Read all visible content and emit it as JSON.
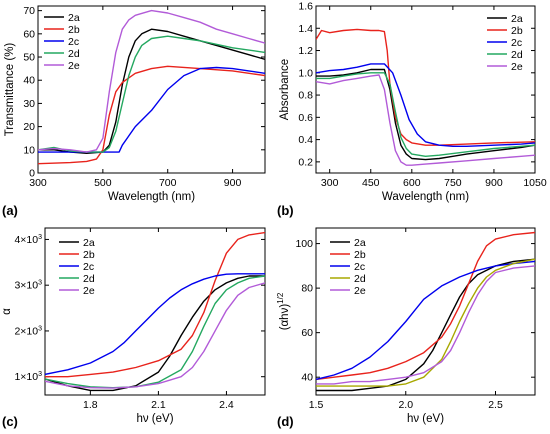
{
  "panel_labels": [
    "(a)",
    "(b)",
    "(c)",
    "(d)"
  ],
  "chart_data": [
    {
      "id": "a",
      "type": "line",
      "xlabel": "Wavelength (nm)",
      "ylabel": "Transmittance (%)",
      "xlim": [
        300,
        1000
      ],
      "ylim": [
        0,
        72
      ],
      "xticks": [
        300,
        500,
        700,
        900
      ],
      "xtick_labels": [
        "300",
        "500",
        "700",
        "900"
      ],
      "yticks": [
        0,
        10,
        20,
        30,
        40,
        50,
        60,
        70
      ],
      "ytick_labels": [
        "0",
        "10",
        "20",
        "30",
        "40",
        "50",
        "60",
        "70"
      ],
      "legend_position": "top-left",
      "grid": false,
      "series": [
        {
          "name": "2a",
          "color": "#000000",
          "x": [
            300,
            350,
            400,
            450,
            500,
            520,
            540,
            560,
            580,
            600,
            620,
            650,
            700,
            750,
            800,
            850,
            900,
            950,
            1000
          ],
          "y": [
            10,
            10,
            9,
            8.5,
            9,
            12,
            22,
            38,
            50,
            57,
            60,
            62,
            61,
            59,
            57,
            55,
            53,
            51,
            49
          ]
        },
        {
          "name": "2b",
          "color": "#e8231c",
          "x": [
            300,
            400,
            450,
            480,
            500,
            520,
            540,
            560,
            600,
            650,
            700,
            800,
            900,
            1000
          ],
          "y": [
            4,
            4.5,
            5,
            6,
            10,
            25,
            35,
            39,
            43,
            45,
            46,
            45,
            44,
            42
          ]
        },
        {
          "name": "2c",
          "color": "#0000ee",
          "x": [
            300,
            400,
            500,
            550,
            560,
            580,
            600,
            650,
            700,
            750,
            800,
            850,
            900,
            950,
            1000
          ],
          "y": [
            9,
            9,
            9,
            9,
            12,
            16,
            20,
            27,
            36,
            42,
            45,
            45.5,
            45,
            44,
            43
          ]
        },
        {
          "name": "2d",
          "color": "#24a860",
          "x": [
            300,
            350,
            400,
            450,
            500,
            520,
            540,
            560,
            580,
            600,
            620,
            650,
            700,
            750,
            800,
            900,
            1000
          ],
          "y": [
            10,
            11,
            9.5,
            9,
            9,
            11,
            18,
            30,
            42,
            50,
            55,
            58,
            59,
            58,
            57,
            54,
            52
          ]
        },
        {
          "name": "2e",
          "color": "#b25bd8",
          "x": [
            300,
            350,
            400,
            450,
            480,
            500,
            520,
            540,
            560,
            580,
            600,
            650,
            700,
            750,
            800,
            850,
            900,
            950,
            1000
          ],
          "y": [
            10,
            10.5,
            10,
            9,
            10,
            15,
            35,
            52,
            62,
            66,
            68,
            70,
            69,
            67,
            65,
            62,
            60,
            58,
            56
          ]
        }
      ]
    },
    {
      "id": "b",
      "type": "line",
      "xlabel": "Wavelength (nm)",
      "ylabel": "Absorbance",
      "xlim": [
        250,
        1050
      ],
      "ylim": [
        0.1,
        1.6
      ],
      "xticks": [
        300,
        450,
        600,
        750,
        900,
        1050
      ],
      "xtick_labels": [
        "300",
        "450",
        "600",
        "750",
        "900",
        "1050"
      ],
      "yticks": [
        0.2,
        0.4,
        0.6,
        0.8,
        1.0,
        1.2,
        1.4,
        1.6
      ],
      "ytick_labels": [
        "0.2",
        "0.4",
        "0.6",
        "0.8",
        "1.0",
        "1.2",
        "1.4",
        "1.6"
      ],
      "legend_position": "top-right",
      "grid": false,
      "series": [
        {
          "name": "2a",
          "color": "#000000",
          "x": [
            250,
            300,
            350,
            400,
            450,
            500,
            520,
            540,
            560,
            580,
            600,
            650,
            700,
            750,
            800,
            900,
            1000,
            1050
          ],
          "y": [
            0.97,
            0.97,
            0.98,
            1.0,
            1.03,
            1.03,
            0.85,
            0.55,
            0.35,
            0.27,
            0.23,
            0.22,
            0.23,
            0.25,
            0.27,
            0.3,
            0.33,
            0.35
          ]
        },
        {
          "name": "2b",
          "color": "#e8231c",
          "x": [
            250,
            270,
            300,
            350,
            400,
            450,
            480,
            500,
            510,
            520,
            540,
            560,
            580,
            600,
            650,
            700,
            800,
            900,
            1050
          ],
          "y": [
            1.3,
            1.38,
            1.36,
            1.38,
            1.39,
            1.38,
            1.38,
            1.37,
            1.2,
            0.9,
            0.6,
            0.45,
            0.4,
            0.37,
            0.35,
            0.35,
            0.36,
            0.37,
            0.38
          ]
        },
        {
          "name": "2c",
          "color": "#0000ee",
          "x": [
            250,
            300,
            350,
            400,
            450,
            500,
            530,
            560,
            590,
            620,
            650,
            700,
            750,
            800,
            900,
            1000,
            1050
          ],
          "y": [
            1.0,
            1.02,
            1.03,
            1.05,
            1.08,
            1.08,
            1.0,
            0.8,
            0.58,
            0.45,
            0.38,
            0.35,
            0.34,
            0.34,
            0.35,
            0.36,
            0.37
          ]
        },
        {
          "name": "2d",
          "color": "#24a860",
          "x": [
            250,
            300,
            350,
            400,
            450,
            500,
            520,
            540,
            560,
            580,
            600,
            650,
            700,
            800,
            900,
            1000,
            1050
          ],
          "y": [
            0.95,
            0.95,
            0.97,
            0.99,
            1.0,
            1.0,
            0.9,
            0.65,
            0.42,
            0.32,
            0.27,
            0.25,
            0.26,
            0.29,
            0.32,
            0.34,
            0.35
          ]
        },
        {
          "name": "2e",
          "color": "#b25bd8",
          "x": [
            250,
            300,
            350,
            400,
            450,
            480,
            500,
            520,
            540,
            560,
            580,
            600,
            650,
            700,
            800,
            900,
            1000,
            1050
          ],
          "y": [
            0.92,
            0.9,
            0.93,
            0.95,
            0.97,
            0.98,
            0.85,
            0.55,
            0.3,
            0.2,
            0.17,
            0.17,
            0.18,
            0.19,
            0.21,
            0.23,
            0.25,
            0.26
          ]
        }
      ]
    },
    {
      "id": "c",
      "type": "line",
      "xlabel": "hν (eV)",
      "ylabel": "α",
      "ylabel_style": "plain",
      "xlim": [
        1.6,
        2.57
      ],
      "ylim": [
        600,
        4250
      ],
      "xticks": [
        1.8,
        2.1,
        2.4
      ],
      "xtick_labels": [
        "1.8",
        "2.1",
        "2.4"
      ],
      "yticks": [
        1000,
        2000,
        3000,
        4000
      ],
      "ytick_labels": [
        "1×10³",
        "2×10³",
        "3×10³",
        "4×10³"
      ],
      "legend_position": "top-left",
      "grid": false,
      "series": [
        {
          "name": "2a",
          "color": "#000000",
          "x": [
            1.6,
            1.7,
            1.8,
            1.9,
            2.0,
            2.1,
            2.15,
            2.2,
            2.25,
            2.3,
            2.35,
            2.4,
            2.45,
            2.5,
            2.57
          ],
          "y": [
            950,
            800,
            700,
            700,
            800,
            1100,
            1450,
            1900,
            2300,
            2650,
            2900,
            3050,
            3150,
            3200,
            3200
          ]
        },
        {
          "name": "2b",
          "color": "#e8231c",
          "x": [
            1.6,
            1.7,
            1.8,
            1.9,
            2.0,
            2.1,
            2.2,
            2.25,
            2.3,
            2.35,
            2.4,
            2.45,
            2.5,
            2.57
          ],
          "y": [
            1000,
            1000,
            1050,
            1100,
            1200,
            1350,
            1600,
            1900,
            2400,
            3100,
            3700,
            4000,
            4100,
            4150
          ]
        },
        {
          "name": "2c",
          "color": "#0000ee",
          "x": [
            1.6,
            1.65,
            1.7,
            1.8,
            1.9,
            1.95,
            2.0,
            2.05,
            2.1,
            2.15,
            2.2,
            2.25,
            2.3,
            2.35,
            2.4,
            2.45,
            2.5,
            2.57
          ],
          "y": [
            1050,
            1100,
            1150,
            1300,
            1550,
            1750,
            2000,
            2250,
            2500,
            2720,
            2900,
            3030,
            3130,
            3200,
            3240,
            3250,
            3250,
            3250
          ]
        },
        {
          "name": "2d",
          "color": "#24a860",
          "x": [
            1.6,
            1.7,
            1.8,
            1.9,
            2.0,
            2.1,
            2.2,
            2.25,
            2.3,
            2.35,
            2.4,
            2.45,
            2.5,
            2.57
          ],
          "y": [
            950,
            850,
            780,
            760,
            780,
            880,
            1150,
            1550,
            2100,
            2600,
            2900,
            3050,
            3150,
            3200
          ]
        },
        {
          "name": "2e",
          "color": "#b25bd8",
          "x": [
            1.6,
            1.7,
            1.8,
            1.9,
            2.0,
            2.1,
            2.2,
            2.25,
            2.3,
            2.35,
            2.4,
            2.45,
            2.5,
            2.57
          ],
          "y": [
            900,
            800,
            760,
            750,
            780,
            850,
            1000,
            1200,
            1550,
            2000,
            2450,
            2780,
            2950,
            3050
          ]
        }
      ]
    },
    {
      "id": "d",
      "type": "line",
      "xlabel": "hν (eV)",
      "ylabel": "(αhν)",
      "ylabel_superscript": "1/2",
      "xlim": [
        1.5,
        2.72
      ],
      "ylim": [
        32,
        107
      ],
      "xticks": [
        1.5,
        2.0,
        2.5
      ],
      "xtick_labels": [
        "1.5",
        "2.0",
        "2.5"
      ],
      "yticks": [
        40,
        60,
        80,
        100
      ],
      "ytick_labels": [
        "40",
        "60",
        "80",
        "100"
      ],
      "legend_position": "top-left",
      "grid": false,
      "series": [
        {
          "name": "2a",
          "color": "#000000",
          "x": [
            1.5,
            1.6,
            1.7,
            1.8,
            1.9,
            2.0,
            2.1,
            2.15,
            2.2,
            2.25,
            2.3,
            2.35,
            2.4,
            2.5,
            2.6,
            2.72
          ],
          "y": [
            34,
            34,
            34,
            35,
            36,
            39,
            46,
            52,
            60,
            68,
            76,
            82,
            86,
            90,
            92,
            93
          ]
        },
        {
          "name": "2b",
          "color": "#e8231c",
          "x": [
            1.5,
            1.6,
            1.7,
            1.8,
            1.9,
            2.0,
            2.1,
            2.2,
            2.25,
            2.3,
            2.35,
            2.4,
            2.45,
            2.5,
            2.6,
            2.72
          ],
          "y": [
            39,
            40,
            41,
            42,
            44,
            47,
            51,
            58,
            64,
            72,
            82,
            92,
            99,
            102,
            104,
            105
          ]
        },
        {
          "name": "2c",
          "color": "#0000ee",
          "x": [
            1.5,
            1.6,
            1.7,
            1.8,
            1.9,
            2.0,
            2.05,
            2.1,
            2.2,
            2.3,
            2.4,
            2.5,
            2.6,
            2.72
          ],
          "y": [
            39,
            41,
            44,
            49,
            56,
            65,
            70,
            75,
            81,
            85,
            88,
            90,
            91,
            92
          ]
        },
        {
          "name": "2d",
          "color": "#a8a800",
          "x": [
            1.5,
            1.6,
            1.7,
            1.8,
            1.9,
            2.0,
            2.1,
            2.2,
            2.25,
            2.3,
            2.35,
            2.4,
            2.45,
            2.5,
            2.6,
            2.72
          ],
          "y": [
            36,
            36,
            36,
            36,
            36,
            37,
            40,
            48,
            56,
            65,
            73,
            80,
            85,
            88,
            91,
            93
          ]
        },
        {
          "name": "2e",
          "color": "#b25bd8",
          "x": [
            1.5,
            1.6,
            1.7,
            1.8,
            1.9,
            2.0,
            2.1,
            2.2,
            2.25,
            2.3,
            2.35,
            2.4,
            2.45,
            2.5,
            2.6,
            2.72
          ],
          "y": [
            37,
            37,
            38,
            38,
            39,
            40,
            42,
            47,
            52,
            60,
            69,
            77,
            83,
            87,
            89,
            90
          ]
        }
      ]
    }
  ]
}
